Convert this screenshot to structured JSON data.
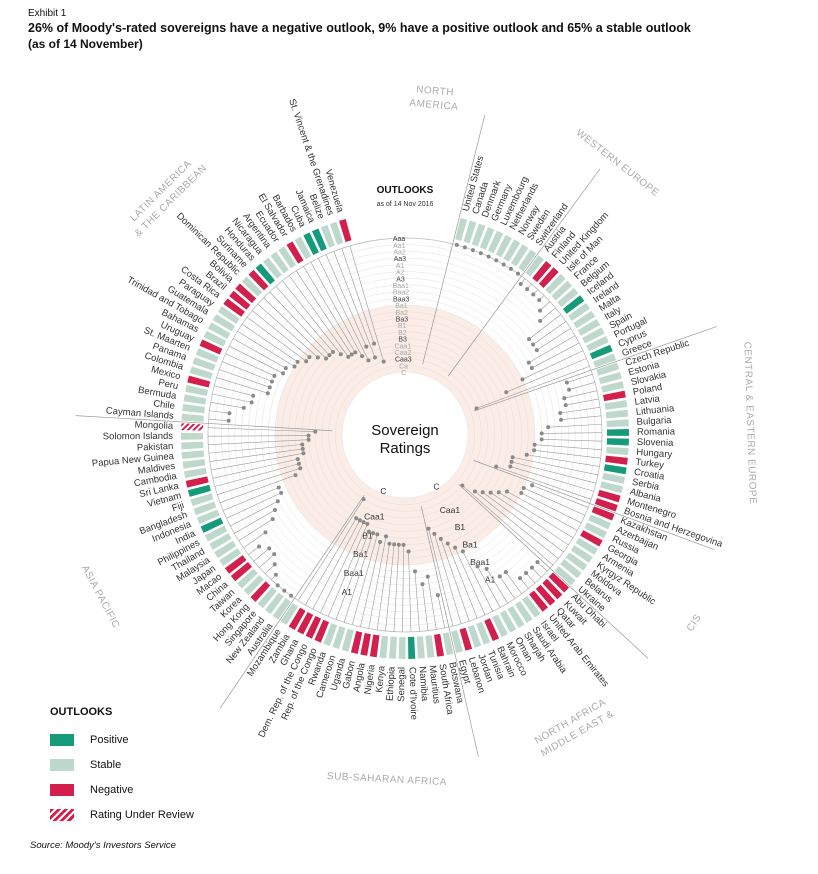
{
  "header": {
    "exhibit": "Exhibit 1",
    "title": "26% of Moody's-rated sovereigns have a negative outlook, 9% have a positive outlook and 65% a stable outlook",
    "subtitle": "(as of 14 November)"
  },
  "center_label": [
    "Sovereign",
    "Ratings"
  ],
  "outlooks_heading": "OUTLOOKS",
  "outlooks_sub": "as of 14 Nov 2016",
  "legend": {
    "title": "OUTLOOKS",
    "items": [
      {
        "label": "Positive",
        "color": "#159a7a"
      },
      {
        "label": "Stable",
        "color": "#bfd8cc"
      },
      {
        "label": "Negative",
        "color": "#d21f4c"
      },
      {
        "label": "Rating Under Review",
        "color": "#d21f4c"
      }
    ]
  },
  "source": "Source: Moody's Investors Service",
  "chart_data": {
    "type": "radial",
    "rating_scale": [
      "Aaa",
      "Aa1",
      "Aa2",
      "Aa3",
      "A1",
      "A2",
      "A3",
      "Baa1",
      "Baa2",
      "Baa3",
      "Ba1",
      "Ba2",
      "Ba3",
      "B1",
      "B2",
      "B3",
      "Caa1",
      "Caa2",
      "Caa3",
      "Ca",
      "C"
    ],
    "axis_labels_lower": [
      "A1",
      "Baa1",
      "Ba1",
      "B1",
      "Caa1",
      "C"
    ],
    "regions": [
      {
        "name": "NORTH AMERICA",
        "lines": [
          "NORTH",
          "AMERICA"
        ]
      },
      {
        "name": "WESTERN EUROPE",
        "lines": [
          "WESTERN EUROPE"
        ]
      },
      {
        "name": "CENTRAL & EASTERN EUROPE",
        "lines": [
          "CENTRAL & EASTERN EUROPE"
        ]
      },
      {
        "name": "CIS",
        "lines": [
          "CIS"
        ]
      },
      {
        "name": "MIDDLE EAST & NORTH AFRICA",
        "lines": [
          "MIDDLE EAST &",
          "NORTH AFRICA"
        ]
      },
      {
        "name": "SUB-SAHARAN AFRICA",
        "lines": [
          "SUB-SAHARAN AFRICA"
        ]
      },
      {
        "name": "ASIA PACIFIC",
        "lines": [
          "ASIA PACIFIC"
        ]
      },
      {
        "name": "LATIN AMERICA & THE CARIBBEAN",
        "lines": [
          "LATIN AMERICA",
          "& THE CARIBBEAN"
        ]
      }
    ],
    "countries": [
      {
        "name": "United States",
        "rating": "Aaa",
        "outlook": "stable"
      },
      {
        "name": "Canada",
        "rating": "Aaa",
        "outlook": "stable"
      },
      {
        "name": "Denmark",
        "rating": "Aaa",
        "outlook": "stable"
      },
      {
        "name": "Germany",
        "rating": "Aaa",
        "outlook": "stable"
      },
      {
        "name": "Luxembourg",
        "rating": "Aaa",
        "outlook": "stable"
      },
      {
        "name": "Netherlands",
        "rating": "Aaa",
        "outlook": "stable"
      },
      {
        "name": "Norway",
        "rating": "Aaa",
        "outlook": "stable"
      },
      {
        "name": "Sweden",
        "rating": "Aaa",
        "outlook": "stable"
      },
      {
        "name": "Switzerland",
        "rating": "Aaa",
        "outlook": "stable"
      },
      {
        "name": "Austria",
        "rating": "Aa1",
        "outlook": "stable"
      },
      {
        "name": "Finland",
        "rating": "Aa1",
        "outlook": "negative"
      },
      {
        "name": "United Kingdom",
        "rating": "Aa1",
        "outlook": "negative"
      },
      {
        "name": "Isle of Man",
        "rating": "Aa1",
        "outlook": "stable"
      },
      {
        "name": "France",
        "rating": "Aa2",
        "outlook": "stable"
      },
      {
        "name": "Belgium",
        "rating": "Aa3",
        "outlook": "stable"
      },
      {
        "name": "Iceland",
        "rating": "A3",
        "outlook": "positive"
      },
      {
        "name": "Ireland",
        "rating": "A3",
        "outlook": "stable"
      },
      {
        "name": "Malta",
        "rating": "A3",
        "outlook": "stable"
      },
      {
        "name": "Italy",
        "rating": "Baa2",
        "outlook": "stable"
      },
      {
        "name": "Spain",
        "rating": "Baa2",
        "outlook": "stable"
      },
      {
        "name": "Portugal",
        "rating": "Ba1",
        "outlook": "stable"
      },
      {
        "name": "Cyprus",
        "rating": "B1",
        "outlook": "positive"
      },
      {
        "name": "Greece",
        "rating": "Caa3",
        "outlook": "stable"
      },
      {
        "name": "Czech Republic",
        "rating": "A1",
        "outlook": "stable"
      },
      {
        "name": "Estonia",
        "rating": "A1",
        "outlook": "stable"
      },
      {
        "name": "Slovakia",
        "rating": "A2",
        "outlook": "stable"
      },
      {
        "name": "Poland",
        "rating": "A2",
        "outlook": "negative"
      },
      {
        "name": "Latvia",
        "rating": "A3",
        "outlook": "stable"
      },
      {
        "name": "Lithuania",
        "rating": "A3",
        "outlook": "stable"
      },
      {
        "name": "Bulgaria",
        "rating": "Baa2",
        "outlook": "stable"
      },
      {
        "name": "Romania",
        "rating": "Baa3",
        "outlook": "positive"
      },
      {
        "name": "Slovenia",
        "rating": "Baa3",
        "outlook": "positive"
      },
      {
        "name": "Hungary",
        "rating": "Ba1",
        "outlook": "stable"
      },
      {
        "name": "Turkey",
        "rating": "Ba1",
        "outlook": "negative"
      },
      {
        "name": "Croatia",
        "rating": "Ba2",
        "outlook": "positive"
      },
      {
        "name": "Serbia",
        "rating": "B1",
        "outlook": "stable"
      },
      {
        "name": "Albania",
        "rating": "B1",
        "outlook": "stable"
      },
      {
        "name": "Montenegro",
        "rating": "B1",
        "outlook": "negative"
      },
      {
        "name": "Bosnia and Herzegovina",
        "rating": "B3",
        "outlook": "negative"
      },
      {
        "name": "Kazakhstan",
        "rating": "Baa3",
        "outlook": "negative"
      },
      {
        "name": "Azerbaijan",
        "rating": "Ba1",
        "outlook": "stable"
      },
      {
        "name": "Russia",
        "rating": "Ba1",
        "outlook": "stable"
      },
      {
        "name": "Georgia",
        "rating": "Ba3",
        "outlook": "negative"
      },
      {
        "name": "Armenia",
        "rating": "B1",
        "outlook": "stable"
      },
      {
        "name": "Kyrgyz Republic",
        "rating": "B2",
        "outlook": "stable"
      },
      {
        "name": "Moldova",
        "rating": "B3",
        "outlook": "stable"
      },
      {
        "name": "Belarus",
        "rating": "Caa1",
        "outlook": "stable"
      },
      {
        "name": "Ukraine",
        "rating": "Caa3",
        "outlook": "stable"
      },
      {
        "name": "Abu Dhabi",
        "rating": "Aa2",
        "outlook": "negative"
      },
      {
        "name": "Kuwait",
        "rating": "Aa2",
        "outlook": "negative"
      },
      {
        "name": "Qatar",
        "rating": "Aa2",
        "outlook": "negative"
      },
      {
        "name": "United Arab Emirates",
        "rating": "Aa2",
        "outlook": "negative"
      },
      {
        "name": "Israel",
        "rating": "A1",
        "outlook": "stable"
      },
      {
        "name": "Saudi Arabia",
        "rating": "A1",
        "outlook": "stable"
      },
      {
        "name": "Sharjah",
        "rating": "A3",
        "outlook": "stable"
      },
      {
        "name": "Oman",
        "rating": "Baa1",
        "outlook": "stable"
      },
      {
        "name": "Morocco",
        "rating": "Ba1",
        "outlook": "stable"
      },
      {
        "name": "Bahrain",
        "rating": "Ba2",
        "outlook": "negative"
      },
      {
        "name": "Tunisia",
        "rating": "Ba3",
        "outlook": "stable"
      },
      {
        "name": "Jordan",
        "rating": "B1",
        "outlook": "stable"
      },
      {
        "name": "Lebanon",
        "rating": "B2",
        "outlook": "negative"
      },
      {
        "name": "Egypt",
        "rating": "B3",
        "outlook": "stable"
      },
      {
        "name": "Botswana",
        "rating": "A2",
        "outlook": "stable"
      },
      {
        "name": "South Africa",
        "rating": "Baa2",
        "outlook": "negative"
      },
      {
        "name": "Mauritius",
        "rating": "Baa1",
        "outlook": "stable"
      },
      {
        "name": "Namibia",
        "rating": "Baa3",
        "outlook": "stable"
      },
      {
        "name": "Cote d'Ivoire",
        "rating": "Ba3",
        "outlook": "positive"
      },
      {
        "name": "Senegal",
        "rating": "B1",
        "outlook": "stable"
      },
      {
        "name": "Ethiopia",
        "rating": "B1",
        "outlook": "stable"
      },
      {
        "name": "Kenya",
        "rating": "B1",
        "outlook": "stable"
      },
      {
        "name": "Nigeria",
        "rating": "B1",
        "outlook": "negative"
      },
      {
        "name": "Angola",
        "rating": "B2",
        "outlook": "negative"
      },
      {
        "name": "Gabon",
        "rating": "B1",
        "outlook": "negative"
      },
      {
        "name": "Uganda",
        "rating": "B2",
        "outlook": "stable"
      },
      {
        "name": "Cameroon",
        "rating": "B2",
        "outlook": "stable"
      },
      {
        "name": "Rwanda",
        "rating": "B2",
        "outlook": "stable"
      },
      {
        "name": "Rep. of the Congo",
        "rating": "B3",
        "outlook": "negative"
      },
      {
        "name": "Dem. Rep. of the Congo",
        "rating": "B3",
        "outlook": "negative"
      },
      {
        "name": "Ghana",
        "rating": "B3",
        "outlook": "negative"
      },
      {
        "name": "Zambia",
        "rating": "B3",
        "outlook": "negative"
      },
      {
        "name": "Mozambique",
        "rating": "Caa3",
        "outlook": "stable"
      },
      {
        "name": "Australia",
        "rating": "Aaa",
        "outlook": "stable"
      },
      {
        "name": "New Zealand",
        "rating": "Aaa",
        "outlook": "stable"
      },
      {
        "name": "Singapore",
        "rating": "Aaa",
        "outlook": "stable"
      },
      {
        "name": "Hong Kong",
        "rating": "Aa1",
        "outlook": "negative"
      },
      {
        "name": "Korea",
        "rating": "Aa2",
        "outlook": "stable"
      },
      {
        "name": "Taiwan",
        "rating": "Aa3",
        "outlook": "stable"
      },
      {
        "name": "China",
        "rating": "Aa3",
        "outlook": "negative"
      },
      {
        "name": "Macao",
        "rating": "Aa2",
        "outlook": "negative"
      },
      {
        "name": "Japan",
        "rating": "A1",
        "outlook": "stable"
      },
      {
        "name": "Malaysia",
        "rating": "A3",
        "outlook": "stable"
      },
      {
        "name": "Thailand",
        "rating": "Baa1",
        "outlook": "stable"
      },
      {
        "name": "Philippines",
        "rating": "Baa2",
        "outlook": "stable"
      },
      {
        "name": "India",
        "rating": "Baa3",
        "outlook": "positive"
      },
      {
        "name": "Indonesia",
        "rating": "Baa3",
        "outlook": "stable"
      },
      {
        "name": "Bangladesh",
        "rating": "Ba3",
        "outlook": "stable"
      },
      {
        "name": "Fiji",
        "rating": "B1",
        "outlook": "stable"
      },
      {
        "name": "Vietnam",
        "rating": "B1",
        "outlook": "positive"
      },
      {
        "name": "Sri Lanka",
        "rating": "B1",
        "outlook": "negative"
      },
      {
        "name": "Cambodia",
        "rating": "B2",
        "outlook": "stable"
      },
      {
        "name": "Maldives",
        "rating": "B2",
        "outlook": "stable"
      },
      {
        "name": "Papua New Guinea",
        "rating": "B2",
        "outlook": "stable"
      },
      {
        "name": "Pakistan",
        "rating": "B3",
        "outlook": "stable"
      },
      {
        "name": "Solomon Islands",
        "rating": "B3",
        "outlook": "stable"
      },
      {
        "name": "Mongolia",
        "rating": "Caa1",
        "outlook": "review"
      },
      {
        "name": "Cayman Islands",
        "rating": "Aa3",
        "outlook": "stable"
      },
      {
        "name": "Chile",
        "rating": "Aa3",
        "outlook": "stable"
      },
      {
        "name": "Bermuda",
        "rating": "A2",
        "outlook": "stable"
      },
      {
        "name": "Peru",
        "rating": "A3",
        "outlook": "stable"
      },
      {
        "name": "Mexico",
        "rating": "A3",
        "outlook": "negative"
      },
      {
        "name": "Colombia",
        "rating": "Baa2",
        "outlook": "stable"
      },
      {
        "name": "Panama",
        "rating": "Baa2",
        "outlook": "stable"
      },
      {
        "name": "St. Maarten",
        "rating": "Baa2",
        "outlook": "stable"
      },
      {
        "name": "Uruguay",
        "rating": "Baa2",
        "outlook": "negative"
      },
      {
        "name": "Bahamas",
        "rating": "Baa3",
        "outlook": "stable"
      },
      {
        "name": "Trinidad and Tobago",
        "rating": "Baa3",
        "outlook": "stable"
      },
      {
        "name": "Guatemala",
        "rating": "Ba1",
        "outlook": "stable"
      },
      {
        "name": "Paraguay",
        "rating": "Ba1",
        "outlook": "stable"
      },
      {
        "name": "Costa Rica",
        "rating": "Ba2",
        "outlook": "negative"
      },
      {
        "name": "Brazil",
        "rating": "Ba2",
        "outlook": "negative"
      },
      {
        "name": "Bolivia",
        "rating": "Ba3",
        "outlook": "negative"
      },
      {
        "name": "Dominican Republic",
        "rating": "B1",
        "outlook": "stable"
      },
      {
        "name": "Suriname",
        "rating": "B1",
        "outlook": "negative"
      },
      {
        "name": "Honduras",
        "rating": "B1",
        "outlook": "positive"
      },
      {
        "name": "Nicaragua",
        "rating": "B2",
        "outlook": "stable"
      },
      {
        "name": "Argentina",
        "rating": "B3",
        "outlook": "stable"
      },
      {
        "name": "Ecuador",
        "rating": "B3",
        "outlook": "stable"
      },
      {
        "name": "El Salvador",
        "rating": "B3",
        "outlook": "negative"
      },
      {
        "name": "Barbados",
        "rating": "Caa1",
        "outlook": "stable"
      },
      {
        "name": "Cuba",
        "rating": "Caa2",
        "outlook": "positive"
      },
      {
        "name": "Jamaica",
        "rating": "B3",
        "outlook": "positive"
      },
      {
        "name": "Belize",
        "rating": "Caa2",
        "outlook": "stable"
      },
      {
        "name": "St. Vincent & the Grenadines",
        "rating": "B3",
        "outlook": "stable"
      },
      {
        "name": "Venezuela",
        "rating": "Caa3",
        "outlook": "negative"
      }
    ]
  }
}
